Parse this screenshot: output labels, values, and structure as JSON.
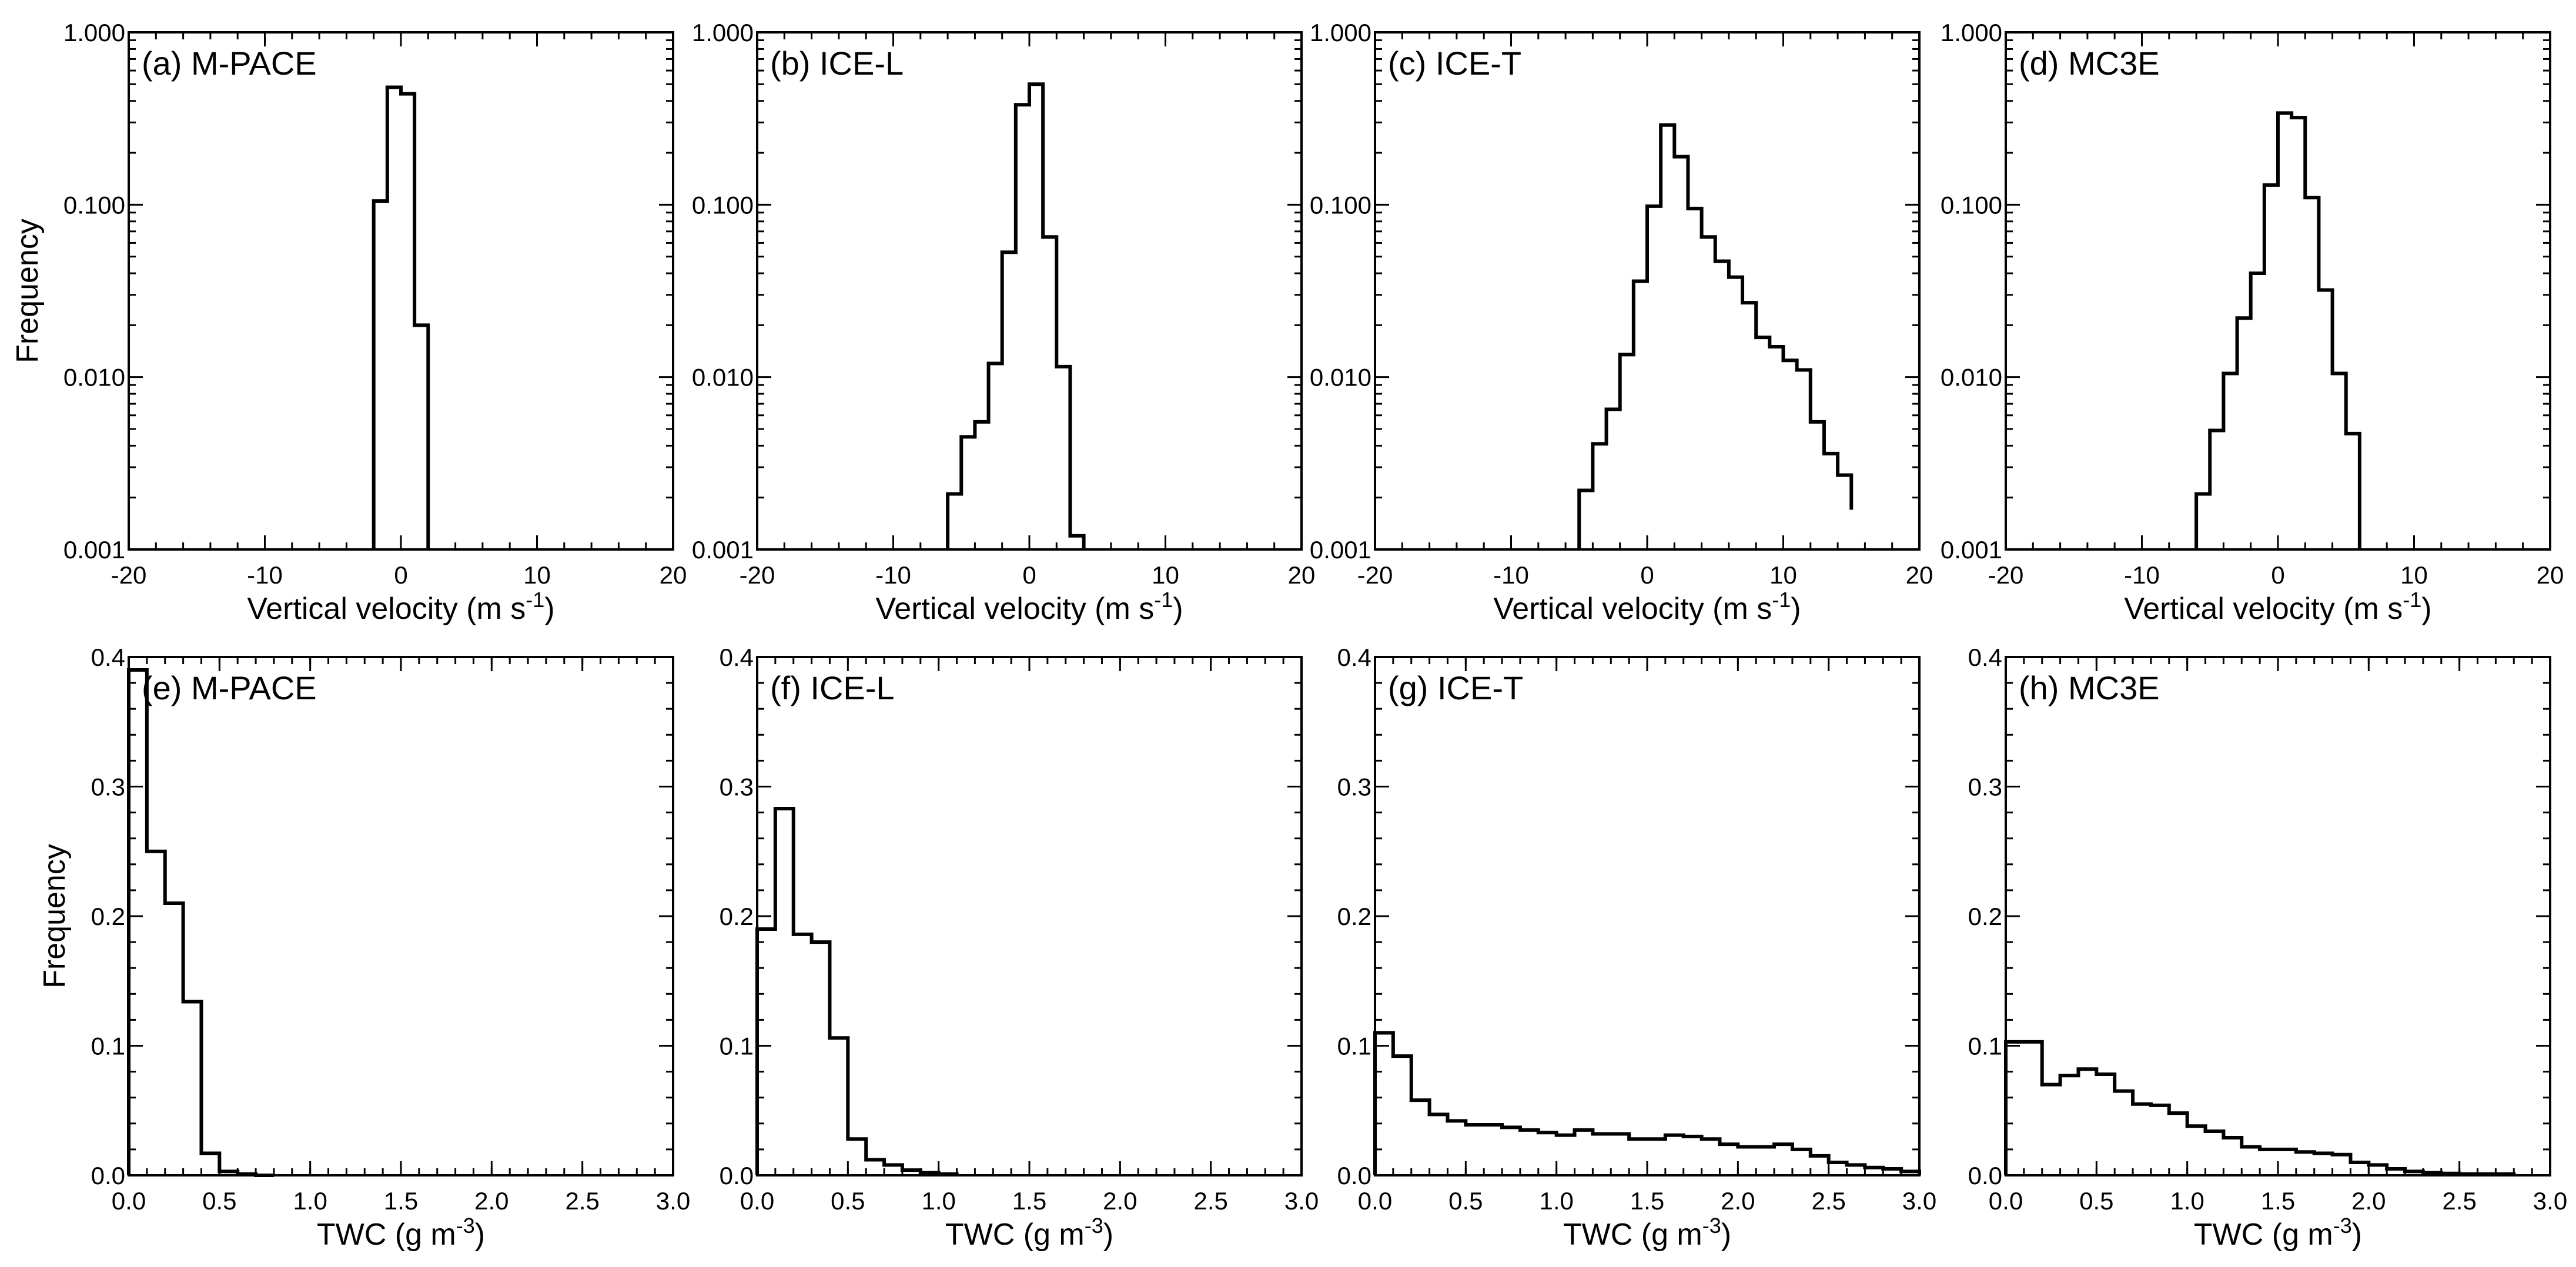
{
  "chart_data": [
    {
      "id": "a",
      "type": "histogram",
      "yscale": "log",
      "title": "(a) M-PACE",
      "xlabel": "Vertical velocity (m s",
      "xlabel_sup": "-1",
      "xlabel_tail": ")",
      "ylabel": "Frequency",
      "xlim": [
        -20,
        20
      ],
      "ylim": [
        0.001,
        1.0
      ],
      "xticks": [
        -20,
        -10,
        0,
        10,
        20
      ],
      "xtick_labels": [
        "-20",
        "-10",
        "0",
        "10",
        "20"
      ],
      "yticks": [
        0.001,
        0.01,
        0.1,
        1.0
      ],
      "ytick_labels": [
        "0.001",
        "0.010",
        "0.100",
        "1.000"
      ],
      "bin_edges": [
        -2.0,
        -1.0,
        0.0,
        1.0,
        2.0
      ],
      "values": [
        0.105,
        0.48,
        0.44,
        0.02
      ]
    },
    {
      "id": "b",
      "type": "histogram",
      "yscale": "log",
      "title": "(b) ICE-L",
      "xlabel": "Vertical velocity (m s",
      "xlabel_sup": "-1",
      "xlabel_tail": ")",
      "ylabel": "",
      "xlim": [
        -20,
        20
      ],
      "ylim": [
        0.001,
        1.0
      ],
      "xticks": [
        -20,
        -10,
        0,
        10,
        20
      ],
      "xtick_labels": [
        "-20",
        "-10",
        "0",
        "10",
        "20"
      ],
      "yticks": [
        0.001,
        0.01,
        0.1,
        1.0
      ],
      "ytick_labels": [
        "0.001",
        "0.010",
        "0.100",
        "1.000"
      ],
      "bin_edges": [
        -6.0,
        -5.0,
        -4.0,
        -3.0,
        -2.0,
        -1.0,
        0.0,
        1.0,
        2.0,
        3.0,
        4.0
      ],
      "values": [
        0.0021,
        0.0045,
        0.0055,
        0.012,
        0.053,
        0.38,
        0.5,
        0.065,
        0.0115,
        0.0012
      ]
    },
    {
      "id": "c",
      "type": "histogram",
      "yscale": "log",
      "title": "(c) ICE-T",
      "xlabel": "Vertical velocity (m s",
      "xlabel_sup": "-1",
      "xlabel_tail": ")",
      "ylabel": "",
      "xlim": [
        -20,
        20
      ],
      "ylim": [
        0.001,
        1.0
      ],
      "xticks": [
        -20,
        -10,
        0,
        10,
        20
      ],
      "xtick_labels": [
        "-20",
        "-10",
        "0",
        "10",
        "20"
      ],
      "yticks": [
        0.001,
        0.01,
        0.1,
        1.0
      ],
      "ytick_labels": [
        "0.001",
        "0.010",
        "0.100",
        "1.000"
      ],
      "bin_edges": [
        -5,
        -4,
        -3,
        -2,
        -1,
        0,
        1,
        2,
        3,
        4,
        5,
        6,
        7,
        8,
        9,
        10,
        11,
        12,
        13,
        14,
        15
      ],
      "values": [
        0.0022,
        0.0041,
        0.0065,
        0.0135,
        0.036,
        0.098,
        0.29,
        0.19,
        0.095,
        0.065,
        0.047,
        0.038,
        0.027,
        0.017,
        0.015,
        0.0125,
        0.011,
        0.0055,
        0.0036,
        0.0027,
        0.0017
      ]
    },
    {
      "id": "d",
      "type": "histogram",
      "yscale": "log",
      "title": "(d) MC3E",
      "xlabel": "Vertical velocity (m s",
      "xlabel_sup": "-1",
      "xlabel_tail": ")",
      "ylabel": "",
      "xlim": [
        -20,
        20
      ],
      "ylim": [
        0.001,
        1.0
      ],
      "xticks": [
        -20,
        -10,
        0,
        10,
        20
      ],
      "xtick_labels": [
        "-20",
        "-10",
        "0",
        "10",
        "20"
      ],
      "yticks": [
        0.001,
        0.01,
        0.1,
        1.0
      ],
      "ytick_labels": [
        "0.001",
        "0.010",
        "0.100",
        "1.000"
      ],
      "bin_edges": [
        -6,
        -5,
        -4,
        -3,
        -2,
        -1,
        0,
        1,
        2,
        3,
        4,
        5,
        6
      ],
      "values": [
        0.0021,
        0.0049,
        0.0105,
        0.022,
        0.04,
        0.13,
        0.34,
        0.32,
        0.11,
        0.032,
        0.0105,
        0.0047
      ]
    },
    {
      "id": "e",
      "type": "histogram",
      "yscale": "linear",
      "title": "(e) M-PACE",
      "xlabel": "TWC (g m",
      "xlabel_sup": "-3",
      "xlabel_tail": ")",
      "ylabel": "Frequency",
      "xlim": [
        0.0,
        3.0
      ],
      "ylim": [
        0.0,
        0.4
      ],
      "xticks": [
        0.0,
        0.5,
        1.0,
        1.5,
        2.0,
        2.5,
        3.0
      ],
      "xtick_labels": [
        "0.0",
        "0.5",
        "1.0",
        "1.5",
        "2.0",
        "2.5",
        "3.0"
      ],
      "yticks": [
        0.0,
        0.1,
        0.2,
        0.3,
        0.4
      ],
      "ytick_labels": [
        "0.0",
        "0.1",
        "0.2",
        "0.3",
        "0.4"
      ],
      "bin_edges": [
        0.0,
        0.1,
        0.2,
        0.3,
        0.4,
        0.5,
        0.6,
        0.7,
        0.8
      ],
      "values": [
        0.39,
        0.25,
        0.21,
        0.134,
        0.017,
        0.003,
        0.001,
        0.0
      ]
    },
    {
      "id": "f",
      "type": "histogram",
      "yscale": "linear",
      "title": "(f) ICE-L",
      "xlabel": "TWC (g m",
      "xlabel_sup": "-3",
      "xlabel_tail": ")",
      "ylabel": "",
      "xlim": [
        0.0,
        3.0
      ],
      "ylim": [
        0.0,
        0.4
      ],
      "xticks": [
        0.0,
        0.5,
        1.0,
        1.5,
        2.0,
        2.5,
        3.0
      ],
      "xtick_labels": [
        "0.0",
        "0.5",
        "1.0",
        "1.5",
        "2.0",
        "2.5",
        "3.0"
      ],
      "yticks": [
        0.0,
        0.1,
        0.2,
        0.3,
        0.4
      ],
      "ytick_labels": [
        "0.0",
        "0.1",
        "0.2",
        "0.3",
        "0.4"
      ],
      "bin_edges": [
        0.0,
        0.1,
        0.2,
        0.3,
        0.4,
        0.5,
        0.6,
        0.7,
        0.8,
        0.9,
        1.0,
        1.1
      ],
      "values": [
        0.19,
        0.283,
        0.186,
        0.18,
        0.106,
        0.028,
        0.012,
        0.008,
        0.004,
        0.002,
        0.001
      ]
    },
    {
      "id": "g",
      "type": "histogram",
      "yscale": "linear",
      "title": "(g) ICE-T",
      "xlabel": "TWC (g m",
      "xlabel_sup": "-3",
      "xlabel_tail": ")",
      "ylabel": "",
      "xlim": [
        0.0,
        3.0
      ],
      "ylim": [
        0.0,
        0.4
      ],
      "xticks": [
        0.0,
        0.5,
        1.0,
        1.5,
        2.0,
        2.5,
        3.0
      ],
      "xtick_labels": [
        "0.0",
        "0.5",
        "1.0",
        "1.5",
        "2.0",
        "2.5",
        "3.0"
      ],
      "yticks": [
        0.0,
        0.1,
        0.2,
        0.3,
        0.4
      ],
      "ytick_labels": [
        "0.0",
        "0.1",
        "0.2",
        "0.3",
        "0.4"
      ],
      "bin_edges": [
        0.0,
        0.1,
        0.2,
        0.3,
        0.4,
        0.5,
        0.6,
        0.7,
        0.8,
        0.9,
        1.0,
        1.1,
        1.2,
        1.3,
        1.4,
        1.5,
        1.6,
        1.7,
        1.8,
        1.9,
        2.0,
        2.1,
        2.2,
        2.3,
        2.4,
        2.5,
        2.6,
        2.7,
        2.8,
        2.9,
        3.0
      ],
      "values": [
        0.11,
        0.092,
        0.058,
        0.047,
        0.042,
        0.039,
        0.039,
        0.037,
        0.035,
        0.033,
        0.031,
        0.035,
        0.032,
        0.032,
        0.028,
        0.028,
        0.031,
        0.03,
        0.028,
        0.024,
        0.022,
        0.022,
        0.024,
        0.02,
        0.015,
        0.01,
        0.008,
        0.006,
        0.005,
        0.003
      ]
    },
    {
      "id": "h",
      "type": "histogram",
      "yscale": "linear",
      "title": "(h) MC3E",
      "xlabel": "TWC (g m",
      "xlabel_sup": "-3",
      "xlabel_tail": ")",
      "ylabel": "",
      "xlim": [
        0.0,
        3.0
      ],
      "ylim": [
        0.0,
        0.4
      ],
      "xticks": [
        0.0,
        0.5,
        1.0,
        1.5,
        2.0,
        2.5,
        3.0
      ],
      "xtick_labels": [
        "0.0",
        "0.5",
        "1.0",
        "1.5",
        "2.0",
        "2.5",
        "3.0"
      ],
      "yticks": [
        0.0,
        0.1,
        0.2,
        0.3,
        0.4
      ],
      "ytick_labels": [
        "0.0",
        "0.1",
        "0.2",
        "0.3",
        "0.4"
      ],
      "bin_edges": [
        0.0,
        0.1,
        0.2,
        0.3,
        0.4,
        0.5,
        0.6,
        0.7,
        0.8,
        0.9,
        1.0,
        1.1,
        1.2,
        1.3,
        1.4,
        1.5,
        1.6,
        1.7,
        1.8,
        1.9,
        2.0,
        2.1,
        2.2,
        2.3,
        2.4,
        2.5,
        2.6,
        2.7,
        2.8
      ],
      "values": [
        0.103,
        0.103,
        0.07,
        0.077,
        0.082,
        0.078,
        0.065,
        0.055,
        0.054,
        0.048,
        0.038,
        0.034,
        0.029,
        0.022,
        0.02,
        0.02,
        0.018,
        0.017,
        0.016,
        0.01,
        0.008,
        0.005,
        0.003,
        0.002,
        0.0015,
        0.001,
        0.001,
        0.001
      ]
    }
  ]
}
